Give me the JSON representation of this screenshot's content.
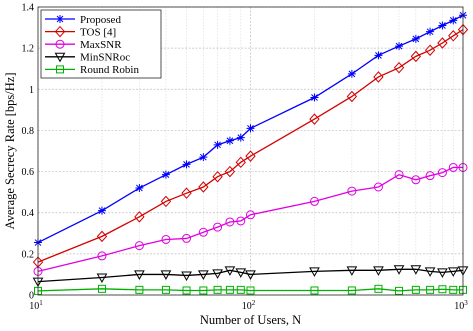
{
  "chart_data": {
    "type": "line",
    "x_scale": "log",
    "xlim": [
      10,
      1000
    ],
    "ylim": [
      0,
      1.4
    ],
    "xlabel": "Number of Users, N",
    "ylabel": "Average Secrecy Rate [bps/Hz]",
    "grid": true,
    "legend_position": "top-left",
    "x_ticks": [
      {
        "value": 10,
        "base": "10",
        "exp": "1"
      },
      {
        "value": 100,
        "base": "10",
        "exp": "2"
      },
      {
        "value": 1000,
        "base": "10",
        "exp": "3"
      }
    ],
    "y_ticks": [
      {
        "value": 0,
        "label": "0"
      },
      {
        "value": 0.2,
        "label": "0.2"
      },
      {
        "value": 0.4,
        "label": "0.4"
      },
      {
        "value": 0.6,
        "label": "0.6"
      },
      {
        "value": 0.8,
        "label": "0.8"
      },
      {
        "value": 1.0,
        "label": "1"
      },
      {
        "value": 1.2,
        "label": "1.2"
      },
      {
        "value": 1.4,
        "label": "1.4"
      }
    ],
    "x": [
      10,
      20,
      30,
      40,
      50,
      60,
      70,
      80,
      90,
      100,
      200,
      300,
      400,
      500,
      600,
      700,
      800,
      900,
      1000
    ],
    "series": [
      {
        "name": "Proposed",
        "color": "#0000ff",
        "marker": "asterisk",
        "values": [
          0.255,
          0.41,
          0.52,
          0.585,
          0.635,
          0.67,
          0.73,
          0.75,
          0.765,
          0.81,
          0.96,
          1.075,
          1.165,
          1.21,
          1.245,
          1.28,
          1.31,
          1.335,
          1.36
        ]
      },
      {
        "name": "TOS [4]",
        "color": "#d40000",
        "marker": "diamond",
        "values": [
          0.16,
          0.285,
          0.38,
          0.455,
          0.495,
          0.525,
          0.575,
          0.6,
          0.645,
          0.675,
          0.855,
          0.965,
          1.06,
          1.105,
          1.16,
          1.19,
          1.225,
          1.26,
          1.29
        ]
      },
      {
        "name": "MaxSNR",
        "color": "#e000e0",
        "marker": "circle",
        "values": [
          0.115,
          0.19,
          0.24,
          0.27,
          0.275,
          0.305,
          0.33,
          0.355,
          0.36,
          0.39,
          0.455,
          0.505,
          0.525,
          0.585,
          0.56,
          0.58,
          0.595,
          0.62,
          0.62
        ]
      },
      {
        "name": "MinSNRoc",
        "color": "#000000",
        "marker": "triangle-down",
        "values": [
          0.065,
          0.085,
          0.1,
          0.1,
          0.095,
          0.1,
          0.105,
          0.12,
          0.11,
          0.1,
          0.115,
          0.12,
          0.12,
          0.125,
          0.125,
          0.115,
          0.11,
          0.115,
          0.12
        ]
      },
      {
        "name": "Round Robin",
        "color": "#00b000",
        "marker": "square",
        "values": [
          0.02,
          0.03,
          0.025,
          0.025,
          0.022,
          0.022,
          0.025,
          0.025,
          0.025,
          0.022,
          0.022,
          0.022,
          0.03,
          0.02,
          0.025,
          0.025,
          0.028,
          0.025,
          0.025
        ]
      }
    ]
  }
}
